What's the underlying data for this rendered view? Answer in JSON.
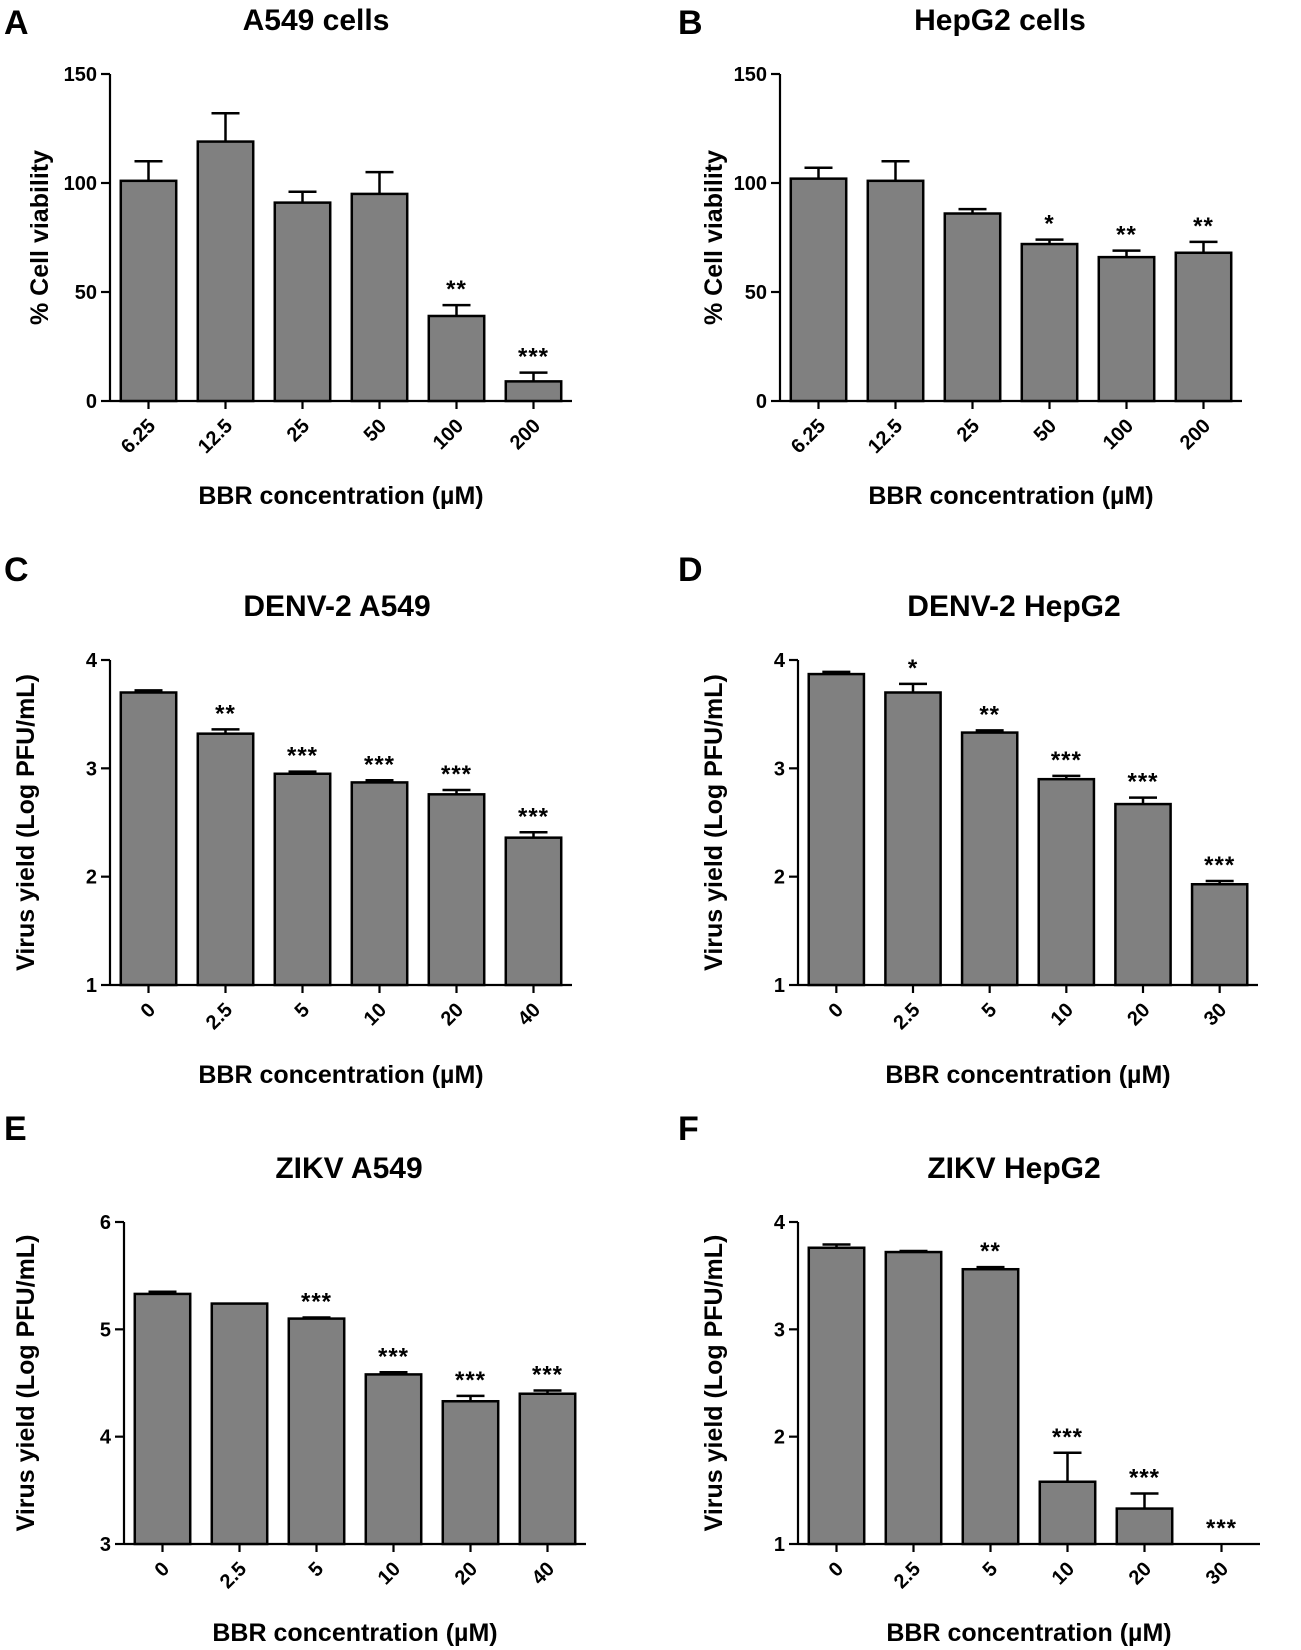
{
  "chart_data": [
    {
      "panel": "A",
      "type": "bar",
      "title": "A549 cells",
      "xlabel": "BBR concentration (µM)",
      "ylabel": "% Cell viability",
      "categories": [
        "6.25",
        "12.5",
        "25",
        "50",
        "100",
        "200"
      ],
      "values": [
        101,
        119,
        91,
        95,
        39,
        9
      ],
      "errors": [
        9,
        13,
        5,
        10,
        5,
        4
      ],
      "significance": [
        "",
        "",
        "",
        "",
        "**",
        "***"
      ],
      "ylim": [
        0,
        150
      ],
      "yticks": [
        0,
        50,
        100,
        150
      ]
    },
    {
      "panel": "B",
      "type": "bar",
      "title": "HepG2 cells",
      "xlabel": "BBR concentration (µM)",
      "ylabel": "% Cell viability",
      "categories": [
        "6.25",
        "12.5",
        "25",
        "50",
        "100",
        "200"
      ],
      "values": [
        102,
        101,
        86,
        72,
        66,
        68
      ],
      "errors": [
        5,
        9,
        2,
        2,
        3,
        5
      ],
      "significance": [
        "",
        "",
        "",
        "*",
        "**",
        "**"
      ],
      "ylim": [
        0,
        150
      ],
      "yticks": [
        0,
        50,
        100,
        150
      ]
    },
    {
      "panel": "C",
      "type": "bar",
      "title": "DENV-2 A549",
      "xlabel": "BBR concentration (µM)",
      "ylabel": "Virus yield (Log PFU/mL)",
      "categories": [
        "0",
        "2.5",
        "5",
        "10",
        "20",
        "40"
      ],
      "values": [
        3.7,
        3.32,
        2.95,
        2.87,
        2.76,
        2.36
      ],
      "errors": [
        0.02,
        0.04,
        0.02,
        0.02,
        0.04,
        0.05
      ],
      "significance": [
        "",
        "**",
        "***",
        "***",
        "***",
        "***"
      ],
      "ylim": [
        1,
        4
      ],
      "yticks": [
        1,
        2,
        3,
        4
      ]
    },
    {
      "panel": "D",
      "type": "bar",
      "title": "DENV-2 HepG2",
      "xlabel": "BBR concentration (µM)",
      "ylabel": "Virus yield (Log PFU/mL)",
      "categories": [
        "0",
        "2.5",
        "5",
        "10",
        "20",
        "30"
      ],
      "values": [
        3.87,
        3.7,
        3.33,
        2.9,
        2.67,
        1.93
      ],
      "errors": [
        0.02,
        0.08,
        0.02,
        0.03,
        0.06,
        0.03
      ],
      "significance": [
        "",
        "*",
        "**",
        "***",
        "***",
        "***"
      ],
      "ylim": [
        1,
        4
      ],
      "yticks": [
        1,
        2,
        3,
        4
      ]
    },
    {
      "panel": "E",
      "type": "bar",
      "title": "ZIKV A549",
      "xlabel": "BBR concentration (µM)",
      "ylabel": "Virus yield (Log PFU/mL)",
      "categories": [
        "0",
        "2.5",
        "5",
        "10",
        "20",
        "40"
      ],
      "values": [
        5.33,
        5.24,
        5.1,
        4.58,
        4.33,
        4.4
      ],
      "errors": [
        0.02,
        0.005,
        0.01,
        0.02,
        0.05,
        0.03
      ],
      "significance": [
        "",
        "",
        "***",
        "***",
        "***",
        "***"
      ],
      "ylim": [
        3,
        6
      ],
      "yticks": [
        3,
        4,
        5,
        6
      ]
    },
    {
      "panel": "F",
      "type": "bar",
      "title": "ZIKV HepG2",
      "xlabel": "BBR concentration (µM)",
      "ylabel": "Virus yield (Log PFU/mL)",
      "categories": [
        "0",
        "2.5",
        "5",
        "10",
        "20",
        "30"
      ],
      "values": [
        3.76,
        3.72,
        3.56,
        1.58,
        1.33,
        1.0
      ],
      "errors": [
        0.03,
        0.01,
        0.02,
        0.27,
        0.14,
        0.0
      ],
      "significance": [
        "",
        "",
        "**",
        "***",
        "***",
        "***"
      ],
      "ylim": [
        1,
        4
      ],
      "yticks": [
        1,
        2,
        3,
        4
      ]
    }
  ]
}
